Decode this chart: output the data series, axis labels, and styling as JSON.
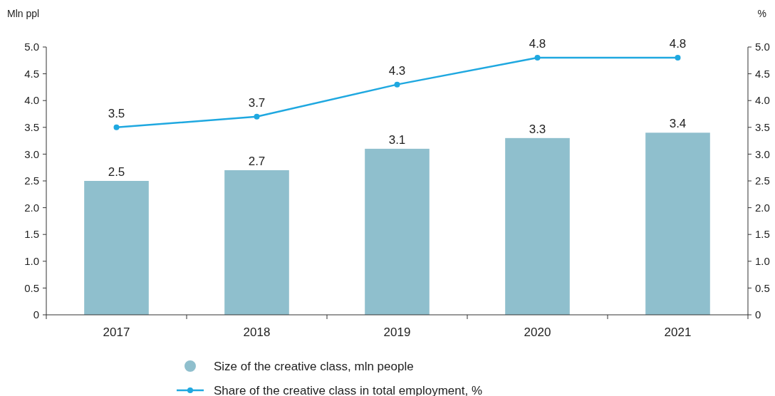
{
  "chart_data": {
    "type": "bar",
    "ylabel": "Mln ppl",
    "y2label": "%",
    "categories": [
      "2017",
      "2018",
      "2019",
      "2020",
      "2021"
    ],
    "series": [
      {
        "name": "Size of the creative class, mln people",
        "color": "#8fbfcd",
        "values": [
          2.5,
          2.7,
          3.1,
          3.3,
          3.4
        ]
      },
      {
        "name": "Share of the creative class in total employment, %",
        "type": "line",
        "axis": "y2",
        "color": "#1fa8e0",
        "values": [
          3.5,
          3.7,
          4.3,
          4.8,
          4.8
        ]
      }
    ],
    "ylim": [
      0,
      5
    ],
    "yticks": [
      0,
      {
        "value": 0.5,
        "label": "0.5"
      },
      {
        "value": 1,
        "label": "1.0"
      },
      {
        "value": 1.5,
        "label": "1.5"
      },
      {
        "value": 2,
        "label": "2.0"
      },
      {
        "value": 2.5,
        "label": "2.5"
      },
      {
        "value": 3,
        "label": "3.0"
      },
      {
        "value": 3.5,
        "label": "3.5"
      },
      {
        "value": 4,
        "label": "4.0"
      },
      {
        "value": 4.5,
        "label": "4.5"
      },
      {
        "value": 5,
        "label": "5.0"
      }
    ],
    "y2lim": [
      0,
      5
    ],
    "y2ticks": [
      0,
      {
        "value": 0.5,
        "label": "0.5"
      },
      {
        "value": 1,
        "label": "1.0"
      },
      {
        "value": 1.5,
        "label": "1.5"
      },
      {
        "value": 2,
        "label": "2.0"
      },
      {
        "value": 2.5,
        "label": "2.5"
      },
      {
        "value": 3,
        "label": "3.0"
      },
      {
        "value": 3.5,
        "label": "3.5"
      },
      {
        "value": 4,
        "label": "4.0"
      },
      {
        "value": 4.5,
        "label": "4.5"
      },
      {
        "value": 5,
        "label": "5.0"
      }
    ],
    "data_labels": true,
    "marker": "circle",
    "legend": "bottom",
    "grid": false
  }
}
